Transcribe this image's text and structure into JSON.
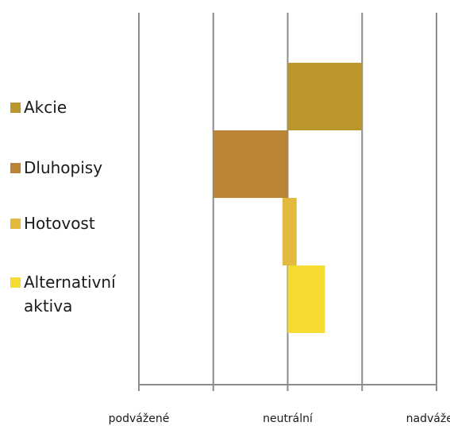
{
  "chart_data": {
    "type": "bar",
    "orientation": "horizontal-range",
    "x_scale": [
      "-2",
      "-1",
      "0",
      "1",
      "2"
    ],
    "tick_labels": [
      {
        "label": "podvážené",
        "at": -2
      },
      {
        "label": "neutrální",
        "at": 0
      },
      {
        "label": "nadvážené",
        "at": 2
      }
    ],
    "series": [
      {
        "name": "Akcie",
        "start": 0,
        "end": 1,
        "color": "#BA962C"
      },
      {
        "name": "Dluhopisy",
        "start": -1,
        "end": 0,
        "color": "#BA8437"
      },
      {
        "name": "Hotovost",
        "start": -0.07,
        "end": 0.12,
        "color": "#E2BA3F"
      },
      {
        "name": "Alternativní aktiva",
        "start": 0,
        "end": 0.5,
        "color": "#F5DA32"
      }
    ],
    "xlim": [
      -2,
      2
    ],
    "grid": true,
    "legend_position": "left"
  }
}
